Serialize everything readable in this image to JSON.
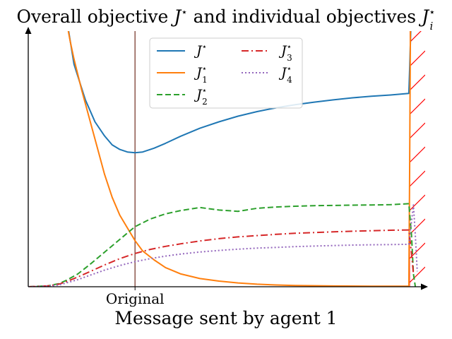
{
  "chart_data": {
    "type": "line",
    "title": "Overall objective J* and individual objectives Ji*",
    "title_parts": {
      "main": "Overall objective ",
      "sym1": "J",
      "sup1": "⋆",
      "mid": " and individual objectives ",
      "sym2": "J",
      "sup2": "⋆",
      "sub2": "i"
    },
    "xlabel": "Message sent by agent 1",
    "ylabel": "",
    "xlim": [
      0,
      1
    ],
    "ylim": [
      0,
      1
    ],
    "grid": false,
    "legend_position": "top-center",
    "axis_ticks": {
      "x_labels": [
        "Original"
      ],
      "y_labels": []
    },
    "reference_line": {
      "x": 0.28,
      "label": "Original",
      "color": "#8c564b"
    },
    "infeasible_region": {
      "x_start": 1.0,
      "x_end": 1.05,
      "hatch_color": "#ff0000"
    },
    "series": [
      {
        "name": "J⋆",
        "sym": "J",
        "sup": "⋆",
        "sub": "",
        "color": "#1f77b4",
        "dash": "solid",
        "x": [
          0.106,
          0.12,
          0.15,
          0.175,
          0.2,
          0.22,
          0.24,
          0.26,
          0.28,
          0.3,
          0.33,
          0.36,
          0.4,
          0.45,
          0.5,
          0.55,
          0.6,
          0.65,
          0.7,
          0.75,
          0.8,
          0.85,
          0.9,
          0.95,
          0.998,
          1.0,
          1.003
        ],
        "y": [
          1.0,
          0.87,
          0.73,
          0.645,
          0.59,
          0.555,
          0.537,
          0.527,
          0.524,
          0.527,
          0.542,
          0.561,
          0.589,
          0.62,
          0.645,
          0.667,
          0.685,
          0.7,
          0.712,
          0.722,
          0.731,
          0.739,
          0.745,
          0.75,
          0.756,
          0.85,
          1.0
        ]
      },
      {
        "name": "J1⋆",
        "sym": "J",
        "sup": "⋆",
        "sub": "1",
        "color": "#ff7f0e",
        "dash": "solid",
        "x": [
          0.105,
          0.11,
          0.12,
          0.14,
          0.16,
          0.18,
          0.2,
          0.22,
          0.24,
          0.26,
          0.28,
          0.3,
          0.33,
          0.36,
          0.4,
          0.45,
          0.5,
          0.55,
          0.6,
          0.65,
          0.7,
          0.8,
          0.9,
          0.998,
          1.0,
          1.002
        ],
        "y": [
          1.0,
          0.96,
          0.89,
          0.77,
          0.66,
          0.55,
          0.44,
          0.35,
          0.28,
          0.23,
          0.18,
          0.14,
          0.105,
          0.075,
          0.05,
          0.032,
          0.022,
          0.015,
          0.01,
          0.007,
          0.005,
          0.003,
          0.002,
          0.002,
          0.45,
          1.0
        ]
      },
      {
        "name": "J2⋆",
        "sym": "J",
        "sup": "⋆",
        "sub": "2",
        "color": "#2ca02c",
        "dash": "8,4",
        "x": [
          0.0,
          0.05,
          0.08,
          0.1,
          0.13,
          0.16,
          0.2,
          0.24,
          0.28,
          0.32,
          0.36,
          0.4,
          0.45,
          0.5,
          0.55,
          0.6,
          0.65,
          0.7,
          0.75,
          0.8,
          0.85,
          0.9,
          0.95,
          0.998,
          1.005,
          1.01,
          1.015
        ],
        "y": [
          0.0,
          0.003,
          0.012,
          0.025,
          0.05,
          0.085,
          0.135,
          0.185,
          0.235,
          0.265,
          0.285,
          0.298,
          0.31,
          0.3,
          0.295,
          0.307,
          0.312,
          0.315,
          0.317,
          0.318,
          0.319,
          0.32,
          0.321,
          0.325,
          0.2,
          0.05,
          0.0
        ]
      },
      {
        "name": "J3⋆",
        "sym": "J",
        "sup": "⋆",
        "sub": "3",
        "color": "#d62728",
        "dash": "10,4,2,4",
        "x": [
          0.0,
          0.05,
          0.08,
          0.1,
          0.13,
          0.16,
          0.2,
          0.24,
          0.28,
          0.32,
          0.36,
          0.4,
          0.45,
          0.5,
          0.55,
          0.6,
          0.65,
          0.7,
          0.75,
          0.8,
          0.85,
          0.9,
          0.95,
          0.998,
          1.005,
          1.01
        ],
        "y": [
          0.0,
          0.003,
          0.01,
          0.02,
          0.038,
          0.058,
          0.085,
          0.11,
          0.13,
          0.146,
          0.158,
          0.168,
          0.179,
          0.188,
          0.195,
          0.2,
          0.205,
          0.209,
          0.212,
          0.215,
          0.217,
          0.219,
          0.221,
          0.222,
          0.13,
          0.05
        ]
      },
      {
        "name": "J4⋆",
        "sym": "J",
        "sup": "⋆",
        "sub": "4",
        "color": "#9467bd",
        "dash": "2,3",
        "x": [
          0.0,
          0.05,
          0.08,
          0.1,
          0.13,
          0.16,
          0.2,
          0.24,
          0.28,
          0.32,
          0.36,
          0.4,
          0.45,
          0.5,
          0.55,
          0.6,
          0.65,
          0.7,
          0.75,
          0.8,
          0.85,
          0.9,
          0.95,
          0.998,
          1.01,
          1.015,
          1.02
        ],
        "y": [
          0.0,
          0.002,
          0.007,
          0.015,
          0.028,
          0.044,
          0.065,
          0.083,
          0.098,
          0.11,
          0.12,
          0.128,
          0.136,
          0.142,
          0.147,
          0.151,
          0.154,
          0.157,
          0.159,
          0.161,
          0.163,
          0.164,
          0.165,
          0.166,
          0.32,
          0.2,
          0.06
        ]
      }
    ]
  }
}
